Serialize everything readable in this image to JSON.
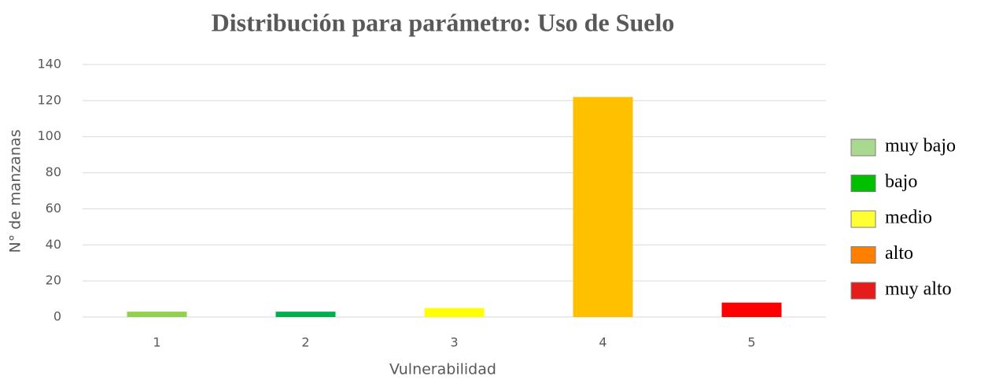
{
  "chart_data": {
    "type": "bar",
    "title": "Distribución para parámetro: Uso de Suelo",
    "x_label": "Vulnerabilidad",
    "y_label": "N° de manzanas",
    "categories": [
      "1",
      "2",
      "3",
      "4",
      "5"
    ],
    "values": [
      3,
      3,
      5,
      122,
      8
    ],
    "colors": [
      "#92d050",
      "#00b050",
      "#ffff00",
      "#ffc000",
      "#ff0000"
    ],
    "ylim": [
      0,
      140
    ],
    "yticks": [
      0,
      20,
      40,
      60,
      80,
      100,
      120,
      140
    ],
    "grid": true,
    "legend_position": "right",
    "legend": [
      {
        "name": "muy bajo",
        "color": "#a9d98e"
      },
      {
        "name": "bajo",
        "color": "#00c000"
      },
      {
        "name": "medio",
        "color": "#ffff33"
      },
      {
        "name": "alto",
        "color": "#ff8000"
      },
      {
        "name": "muy alto",
        "color": "#e41c1c"
      }
    ]
  }
}
